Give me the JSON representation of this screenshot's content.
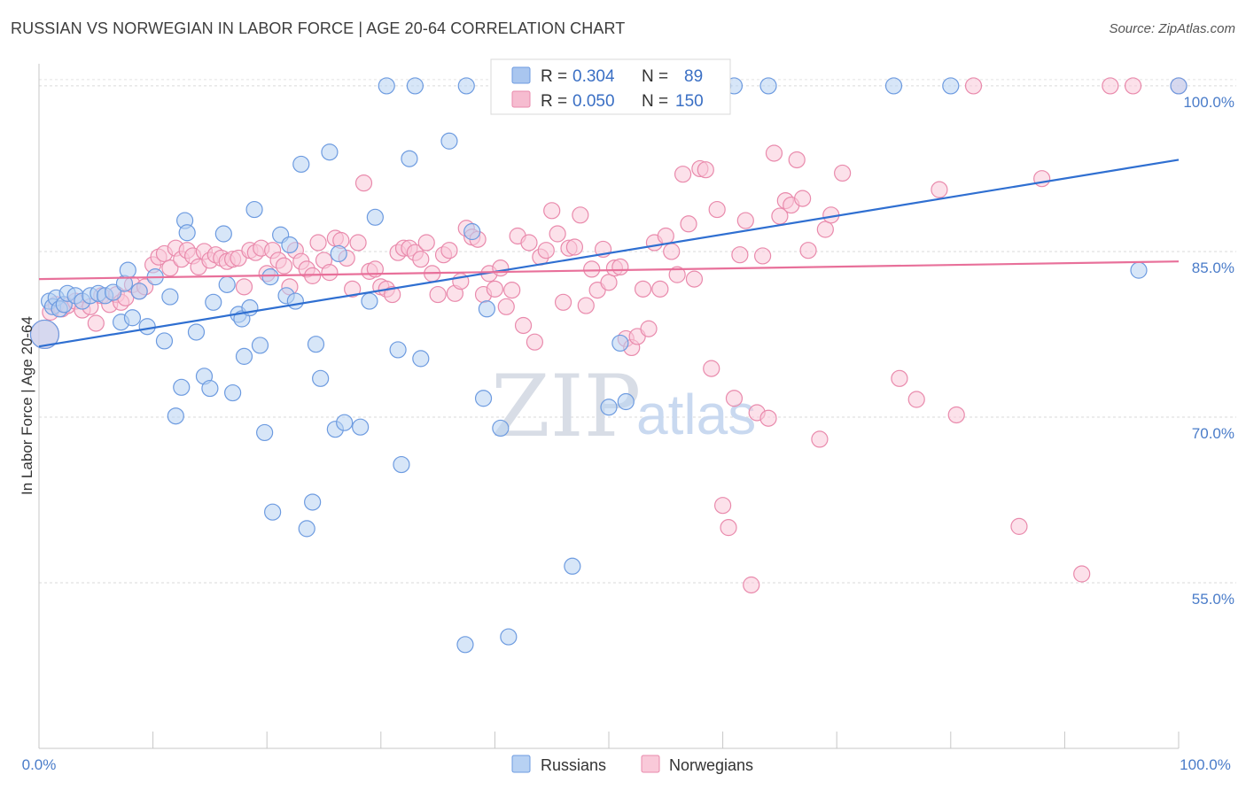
{
  "title": "RUSSIAN VS NORWEGIAN IN LABOR FORCE | AGE 20-64 CORRELATION CHART",
  "source": "Source: ZipAtlas.com",
  "watermark": {
    "zip": "ZIP",
    "atlas": "atlas"
  },
  "legend": {
    "rows": [
      {
        "r_label": "R =",
        "r_value": "0.304",
        "n_label": "N =",
        "n_value": "89",
        "color": "#a9c6ef",
        "stroke": "#6d9be0"
      },
      {
        "r_label": "R =",
        "r_value": "0.050",
        "n_label": "N =",
        "n_value": "150",
        "color": "#f6bcd0",
        "stroke": "#e98aac"
      }
    ]
  },
  "bottom_legend": [
    {
      "label": "Russians",
      "color": "#b7d1f3",
      "stroke": "#6d9be0"
    },
    {
      "label": "Norwegians",
      "color": "#f9c9d9",
      "stroke": "#e98aac"
    }
  ],
  "chart_data": {
    "type": "scatter",
    "title": "RUSSIAN VS NORWEGIAN IN LABOR FORCE | AGE 20-64 CORRELATION CHART",
    "xlabel": "",
    "ylabel": "In Labor Force | Age 20-64",
    "xlim": [
      0,
      100
    ],
    "ylim": [
      40,
      102
    ],
    "x_tick_labels": [
      "0.0%",
      "100.0%"
    ],
    "y_ticks": [
      {
        "value": 55,
        "label": "55.0%"
      },
      {
        "value": 70,
        "label": "70.0%"
      },
      {
        "value": 85,
        "label": "85.0%"
      },
      {
        "value": 100,
        "label": "100.0%"
      }
    ],
    "grid": true,
    "legend_position": "top-center",
    "series": [
      {
        "name": "Russians",
        "color": "#6d9be0",
        "fill": "#b7d1f3",
        "trend": {
          "x": [
            0,
            100
          ],
          "y": [
            76.4,
            93.3
          ],
          "color": "#2f6fd1"
        },
        "points": [
          [
            0.5,
            77.5
          ],
          [
            0.9,
            80.5
          ],
          [
            1.2,
            80
          ],
          [
            1.5,
            80.8
          ],
          [
            1.8,
            79.8
          ],
          [
            2.2,
            80.2
          ],
          [
            2.5,
            81.2
          ],
          [
            3.2,
            81
          ],
          [
            3.8,
            80.5
          ],
          [
            4.5,
            81
          ],
          [
            5.2,
            81.2
          ],
          [
            5.8,
            81
          ],
          [
            6.5,
            81.3
          ],
          [
            7.2,
            78.6
          ],
          [
            7.5,
            82.1
          ],
          [
            7.8,
            83.3
          ],
          [
            8.2,
            79
          ],
          [
            8.8,
            81.4
          ],
          [
            9.5,
            78.2
          ],
          [
            10.2,
            82.7
          ],
          [
            11,
            76.9
          ],
          [
            11.5,
            80.9
          ],
          [
            12,
            70.1
          ],
          [
            12.5,
            72.7
          ],
          [
            12.8,
            87.8
          ],
          [
            13,
            86.7
          ],
          [
            13.8,
            77.7
          ],
          [
            14.5,
            73.7
          ],
          [
            15,
            72.6
          ],
          [
            15.3,
            80.4
          ],
          [
            16.2,
            86.6
          ],
          [
            16.5,
            82
          ],
          [
            17,
            72.2
          ],
          [
            17.5,
            79.3
          ],
          [
            17.8,
            78.9
          ],
          [
            18,
            75.5
          ],
          [
            18.5,
            79.9
          ],
          [
            18.9,
            88.8
          ],
          [
            19.4,
            76.5
          ],
          [
            19.8,
            68.6
          ],
          [
            20.3,
            82.7
          ],
          [
            20.5,
            61.4
          ],
          [
            21.2,
            86.5
          ],
          [
            21.7,
            81
          ],
          [
            22,
            85.6
          ],
          [
            22.5,
            80.5
          ],
          [
            23,
            92.9
          ],
          [
            23.5,
            59.9
          ],
          [
            24,
            62.3
          ],
          [
            24.3,
            76.6
          ],
          [
            24.7,
            73.5
          ],
          [
            25.5,
            94
          ],
          [
            26,
            68.9
          ],
          [
            26.3,
            84.8
          ],
          [
            26.8,
            69.5
          ],
          [
            28.2,
            69.1
          ],
          [
            29,
            80.5
          ],
          [
            29.5,
            88.1
          ],
          [
            30.5,
            100
          ],
          [
            31.5,
            76.1
          ],
          [
            31.8,
            65.7
          ],
          [
            32.5,
            93.4
          ],
          [
            33,
            100
          ],
          [
            33.5,
            75.3
          ],
          [
            36,
            95
          ],
          [
            37.4,
            49.4
          ],
          [
            37.5,
            100
          ],
          [
            38,
            86.8
          ],
          [
            39,
            71.7
          ],
          [
            39.3,
            79.8
          ],
          [
            40.5,
            69
          ],
          [
            41.2,
            50.1
          ],
          [
            46.8,
            56.5
          ],
          [
            50,
            70.9
          ],
          [
            51,
            76.7
          ],
          [
            51.5,
            71.4
          ],
          [
            55,
            100
          ],
          [
            60,
            100
          ],
          [
            61,
            100
          ],
          [
            64,
            100
          ],
          [
            75,
            100
          ],
          [
            80,
            100
          ],
          [
            96.5,
            83.3
          ],
          [
            100,
            100
          ]
        ]
      },
      {
        "name": "Norwegians",
        "color": "#e98aac",
        "fill": "#f9c9d9",
        "trend": {
          "x": [
            0,
            100
          ],
          "y": [
            82.5,
            84.1
          ],
          "color": "#e8709a"
        },
        "points": [
          [
            0.5,
            77.5
          ],
          [
            1,
            79.5
          ],
          [
            1.5,
            80.2
          ],
          [
            2,
            79.8
          ],
          [
            2.5,
            80.1
          ],
          [
            3.2,
            80.5
          ],
          [
            3.8,
            79.7
          ],
          [
            4.5,
            80
          ],
          [
            5,
            78.5
          ],
          [
            5.5,
            81
          ],
          [
            6.2,
            80.2
          ],
          [
            6.8,
            81.1
          ],
          [
            7.2,
            80.4
          ],
          [
            7.6,
            80.8
          ],
          [
            8.2,
            82
          ],
          [
            8.8,
            81.4
          ],
          [
            9.3,
            81.8
          ],
          [
            10,
            83.8
          ],
          [
            10.5,
            84.5
          ],
          [
            11,
            84.8
          ],
          [
            11.5,
            83.5
          ],
          [
            12,
            85.3
          ],
          [
            12.5,
            84.3
          ],
          [
            13,
            85.1
          ],
          [
            13.5,
            84.6
          ],
          [
            14,
            83.6
          ],
          [
            14.5,
            85
          ],
          [
            15,
            84.2
          ],
          [
            15.5,
            84.7
          ],
          [
            16,
            84.4
          ],
          [
            16.5,
            84.1
          ],
          [
            17,
            84.3
          ],
          [
            17.5,
            84.4
          ],
          [
            18,
            81.8
          ],
          [
            18.5,
            85.1
          ],
          [
            19,
            84.9
          ],
          [
            19.5,
            85.3
          ],
          [
            20,
            83
          ],
          [
            20.5,
            85.1
          ],
          [
            21,
            84.2
          ],
          [
            21.5,
            83.7
          ],
          [
            22,
            81.8
          ],
          [
            22.5,
            85.1
          ],
          [
            23,
            84.1
          ],
          [
            23.5,
            83.4
          ],
          [
            24,
            82.8
          ],
          [
            24.5,
            85.8
          ],
          [
            25,
            84.2
          ],
          [
            25.5,
            83.1
          ],
          [
            26,
            86.2
          ],
          [
            26.5,
            86
          ],
          [
            27,
            84.4
          ],
          [
            27.5,
            81.6
          ],
          [
            28,
            85.8
          ],
          [
            28.5,
            91.2
          ],
          [
            29,
            83.2
          ],
          [
            29.5,
            83.4
          ],
          [
            30,
            81.8
          ],
          [
            30.5,
            81.6
          ],
          [
            31,
            81.1
          ],
          [
            31.5,
            84.9
          ],
          [
            32,
            85.3
          ],
          [
            32.5,
            85.3
          ],
          [
            33,
            84.9
          ],
          [
            33.5,
            84.3
          ],
          [
            34,
            85.8
          ],
          [
            34.5,
            83
          ],
          [
            35,
            81.1
          ],
          [
            35.5,
            84.7
          ],
          [
            36,
            85.1
          ],
          [
            36.5,
            81.2
          ],
          [
            37,
            82.3
          ],
          [
            37.5,
            87.1
          ],
          [
            38,
            86.3
          ],
          [
            38.5,
            86.1
          ],
          [
            39,
            81.1
          ],
          [
            39.5,
            83
          ],
          [
            40,
            81.6
          ],
          [
            40.5,
            83.5
          ],
          [
            41,
            80
          ],
          [
            41.5,
            81.5
          ],
          [
            42,
            86.4
          ],
          [
            42.5,
            78.3
          ],
          [
            43,
            85.8
          ],
          [
            43.5,
            76.8
          ],
          [
            44,
            84.5
          ],
          [
            44.5,
            85.1
          ],
          [
            45,
            88.7
          ],
          [
            45.5,
            86.6
          ],
          [
            46,
            80.4
          ],
          [
            46.5,
            85.3
          ],
          [
            47,
            85.4
          ],
          [
            47.5,
            88.3
          ],
          [
            48,
            80.1
          ],
          [
            48.5,
            83.4
          ],
          [
            49,
            81.5
          ],
          [
            49.5,
            85.2
          ],
          [
            50,
            82.2
          ],
          [
            50.5,
            83.5
          ],
          [
            51,
            83.6
          ],
          [
            51.5,
            77.1
          ],
          [
            52,
            76.3
          ],
          [
            52.5,
            77.3
          ],
          [
            53,
            81.6
          ],
          [
            53.5,
            78
          ],
          [
            54,
            85.8
          ],
          [
            54.5,
            81.6
          ],
          [
            55,
            86.4
          ],
          [
            55.5,
            85
          ],
          [
            56,
            82.9
          ],
          [
            56.5,
            92
          ],
          [
            57,
            87.5
          ],
          [
            57.5,
            82.5
          ],
          [
            58,
            92.5
          ],
          [
            58.5,
            92.4
          ],
          [
            59,
            74.4
          ],
          [
            59.5,
            88.8
          ],
          [
            60,
            62
          ],
          [
            60.5,
            60
          ],
          [
            61,
            71.7
          ],
          [
            61.5,
            84.7
          ],
          [
            62,
            87.8
          ],
          [
            62.5,
            54.8
          ],
          [
            63,
            70.4
          ],
          [
            63.5,
            84.6
          ],
          [
            64,
            69.9
          ],
          [
            64.5,
            93.9
          ],
          [
            65,
            88.2
          ],
          [
            65.5,
            89.6
          ],
          [
            66,
            89.2
          ],
          [
            66.5,
            93.3
          ],
          [
            67,
            89.8
          ],
          [
            67.5,
            85.1
          ],
          [
            68.5,
            68
          ],
          [
            69,
            87
          ],
          [
            69.5,
            88.3
          ],
          [
            70.5,
            92.1
          ],
          [
            75.5,
            73.5
          ],
          [
            77,
            71.6
          ],
          [
            79,
            90.6
          ],
          [
            80.5,
            70.2
          ],
          [
            82,
            100
          ],
          [
            86,
            60.1
          ],
          [
            88,
            91.6
          ],
          [
            91.5,
            55.8
          ],
          [
            94,
            100
          ],
          [
            96,
            100
          ],
          [
            100,
            100
          ]
        ]
      }
    ]
  }
}
